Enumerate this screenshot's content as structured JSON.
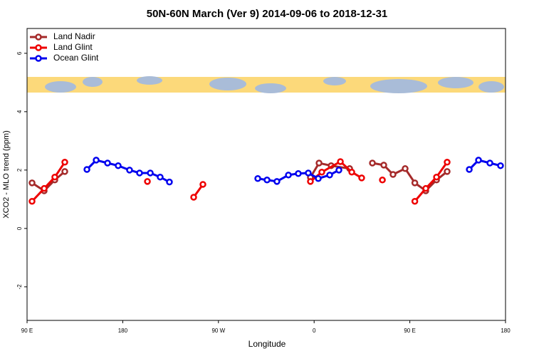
{
  "chart_data": {
    "type": "line",
    "title": "50N-60N March (Ver 9)   2014-09-06 to 2018-12-31",
    "x_label": "Longitude",
    "y_label": "XCO2 - MLO trend (ppm)",
    "xlim": [
      90,
      540
    ],
    "ylim": [
      -3.15,
      6.85
    ],
    "xticks": [
      {
        "value": 90,
        "label": "90 E"
      },
      180,
      {
        "value": 270,
        "label": "90 W"
      },
      {
        "value": 360,
        "label": "0"
      },
      {
        "value": 450,
        "label": "90 E"
      },
      {
        "value": 540,
        "label": "180"
      }
    ],
    "yticks": [
      -2,
      0,
      2,
      4,
      6
    ],
    "legend": "top-left",
    "series": [
      {
        "name": "Land Nadir",
        "color": "#a52a2a",
        "x": [
          94.7,
          106.1,
          116.1,
          125.5,
          null,
          356.5,
          364.6,
          376.0,
          393.4,
          null,
          414.8,
          425.5,
          434.2,
          445.6,
          454.7,
          465.0,
          475.1,
          485.1
        ],
        "values": [
          1.56,
          1.29,
          1.66,
          1.95,
          null,
          1.75,
          2.24,
          2.15,
          2.05,
          null,
          2.24,
          2.17,
          1.85,
          2.05,
          1.56,
          1.29,
          1.66,
          1.95
        ]
      },
      {
        "name": "Land Glint",
        "color": "#ee0000",
        "x": [
          94.7,
          106.1,
          116.1,
          125.5,
          null,
          203.2,
          null,
          246.7,
          255.4,
          null,
          356.5,
          367.2,
          384.7,
          395.4,
          404.7,
          null,
          424.2,
          null,
          454.7,
          465.0,
          475.1,
          485.1
        ],
        "values": [
          0.93,
          1.37,
          1.76,
          2.27,
          null,
          1.61,
          null,
          1.07,
          1.51,
          null,
          1.61,
          1.93,
          2.29,
          1.93,
          1.73,
          null,
          1.66,
          null,
          0.93,
          1.37,
          1.76,
          2.27
        ]
      },
      {
        "name": "Ocean Glint",
        "color": "#0000ee",
        "x": [
          146.3,
          155.0,
          165.7,
          175.7,
          186.4,
          195.8,
          205.9,
          215.2,
          223.9,
          null,
          307.0,
          315.7,
          325.0,
          335.8,
          345.1,
          354.5,
          363.9,
          374.6,
          383.3,
          null,
          505.9,
          514.6,
          525.3,
          535.3
        ],
        "values": [
          2.02,
          2.34,
          2.24,
          2.15,
          2.0,
          1.9,
          1.9,
          1.76,
          1.59,
          null,
          1.71,
          1.66,
          1.61,
          1.83,
          1.88,
          1.9,
          1.71,
          1.83,
          2.0,
          null,
          2.02,
          2.34,
          2.24,
          2.15
        ]
      }
    ]
  }
}
